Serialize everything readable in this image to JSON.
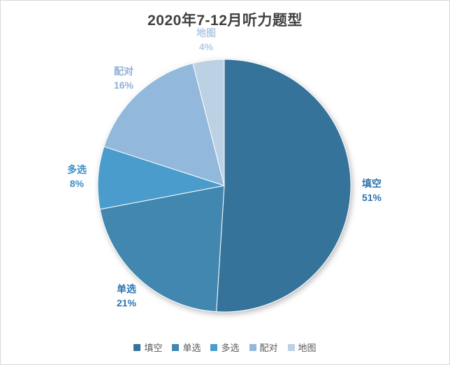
{
  "chart_data": {
    "type": "pie",
    "title": "2020年7-12月听力题型",
    "categories": [
      "填空",
      "单选",
      "多选",
      "配对",
      "地图"
    ],
    "values": [
      51,
      21,
      8,
      16,
      4
    ],
    "value_unit": "%",
    "start_angle_deg": 0,
    "direction": "clockwise",
    "slice_colors": [
      "#35739A",
      "#4287B0",
      "#4A9CCC",
      "#92B8DC",
      "#BCD1E4"
    ],
    "label_colors": [
      "#2E74AE",
      "#2E75B4",
      "#3F8EC6",
      "#92AFD7",
      "#B4CBE4"
    ],
    "title_color": "#404040",
    "legend_text_color": "#595959",
    "legend_position": "bottom",
    "data_labels": "category name and percent, outside end"
  }
}
